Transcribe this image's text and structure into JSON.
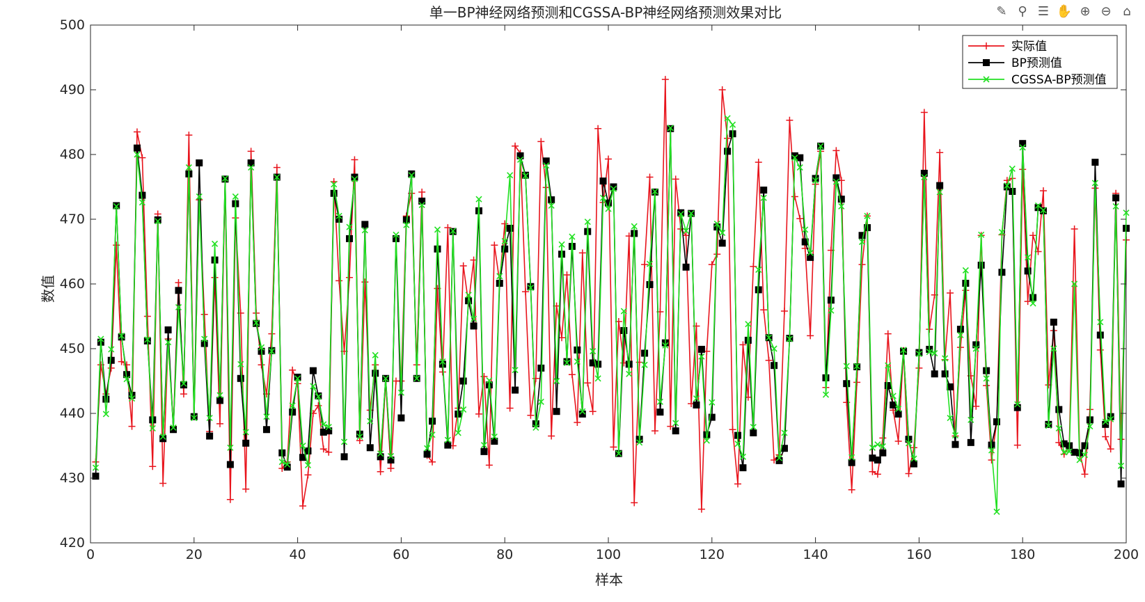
{
  "toolbar": {
    "icons": [
      "brush-icon",
      "data-tips-icon",
      "legend-icon",
      "pan-icon",
      "zoom-in-icon",
      "zoom-out-icon",
      "home-icon"
    ]
  },
  "chart_data": {
    "type": "line",
    "title": "单一BP神经网络预测和CGSSA-BP神经网络预测效果对比",
    "xlabel": "样本",
    "ylabel": "数值",
    "xlim": [
      0,
      200
    ],
    "ylim": [
      420,
      500
    ],
    "xticks": [
      0,
      20,
      40,
      60,
      80,
      100,
      120,
      140,
      160,
      180,
      200
    ],
    "yticks": [
      420,
      430,
      440,
      450,
      460,
      470,
      480,
      490,
      500
    ],
    "grid": false,
    "legend_position": "top-right",
    "x": [
      1,
      2,
      3,
      4,
      5,
      6,
      7,
      8,
      9,
      10,
      11,
      12,
      13,
      14,
      15,
      16,
      17,
      18,
      19,
      20,
      21,
      22,
      23,
      24,
      25,
      26,
      27,
      28,
      29,
      30,
      31,
      32,
      33,
      34,
      35,
      36,
      37,
      38,
      39,
      40,
      41,
      42,
      43,
      44,
      45,
      46,
      47,
      48,
      49,
      50,
      51,
      52,
      53,
      54,
      55,
      56,
      57,
      58,
      59,
      60,
      61,
      62,
      63,
      64,
      65,
      66,
      67,
      68,
      69,
      70,
      71,
      72,
      73,
      74,
      75,
      76,
      77,
      78,
      79,
      80,
      81,
      82,
      83,
      84,
      85,
      86,
      87,
      88,
      89,
      90,
      91,
      92,
      93,
      94,
      95,
      96,
      97,
      98,
      99,
      100,
      101,
      102,
      103,
      104,
      105,
      106,
      107,
      108,
      109,
      110,
      111,
      112,
      113,
      114,
      115,
      116,
      117,
      118,
      119,
      120,
      121,
      122,
      123,
      124,
      125,
      126,
      127,
      128,
      129,
      130,
      131,
      132,
      133,
      134,
      135,
      136,
      137,
      138,
      139,
      140,
      141,
      142,
      143,
      144,
      145,
      146,
      147,
      148,
      149,
      150,
      151,
      152,
      153,
      154,
      155,
      156,
      157,
      158,
      159,
      160,
      161,
      162,
      163,
      164,
      165,
      166,
      167,
      168,
      169,
      170,
      171,
      172,
      173,
      174,
      175,
      176,
      177,
      178,
      179,
      180,
      181,
      182,
      183,
      184,
      185,
      186,
      187,
      188,
      189,
      190,
      191,
      192,
      193,
      194,
      195,
      196,
      197,
      198,
      199,
      200
    ],
    "series": [
      {
        "name": "实际值",
        "color": "#e8141c",
        "marker": "plus",
        "values": [
          432.5,
          447.5,
          443,
          447,
          466,
          448,
          447.5,
          438,
          483.5,
          479.5,
          455,
          431.8,
          470.8,
          429.2,
          451.5,
          438,
          460.2,
          443,
          483,
          439.5,
          473,
          455.3,
          437.2,
          461,
          438.4,
          475.8,
          426.7,
          470.2,
          455.5,
          428.3,
          480.5,
          455.5,
          447.5,
          443,
          452.3,
          478,
          431.5,
          432.5,
          446.7,
          444.6,
          425.7,
          430.5,
          440,
          441.2,
          434.5,
          434,
          475.8,
          460.5,
          449.6,
          461,
          479.2,
          435.8,
          460.3,
          440.5,
          447.5,
          431,
          445,
          431.5,
          445,
          445,
          470.5,
          474,
          447.5,
          474.2,
          433.5,
          432.5,
          459.3,
          446.4,
          468.7,
          435,
          440.8,
          462.8,
          457,
          463.7,
          439.9,
          445.7,
          432,
          466,
          460.4,
          469.3,
          440.8,
          481.3,
          480.2,
          458.8,
          439.7,
          445.4,
          482,
          474.9,
          436.5,
          456.6,
          451.7,
          461.4,
          446,
          438.6,
          464.8,
          444.7,
          440.3,
          484,
          472.6,
          479.3,
          434.8,
          454.2,
          447.8,
          467.4,
          426.2,
          447.9,
          463,
          476.5,
          437.3,
          455.7,
          491.6,
          438,
          476.2,
          468.5,
          467.5,
          441.5,
          453.5,
          425.2,
          449.6,
          463,
          464.6,
          490,
          482.5,
          437.5,
          429.1,
          450.6,
          442.5,
          462.7,
          478.8,
          456,
          448.2,
          432.8,
          433.6,
          455.8,
          485.3,
          473.5,
          470.1,
          465.5,
          452,
          475.4,
          480.5,
          444,
          465.2,
          480.6,
          476,
          441.7,
          428.2,
          444.8,
          463,
          470.5,
          431,
          430.6,
          436.2,
          452.3,
          440.5,
          435.7,
          449.7,
          430.7,
          434.7,
          447,
          486.5,
          453,
          458.3,
          480.3,
          448.3,
          458.6,
          436.5,
          450.2,
          459,
          445.8,
          441.1,
          467.5,
          444.3,
          432.8,
          438.7,
          467.6,
          476,
          476.3,
          435.1,
          477.7,
          457.3,
          467.5,
          465,
          474.4,
          444.4,
          452.8,
          435.5,
          433.7,
          434.8,
          468.5,
          434,
          430.6,
          440.6,
          474.8,
          449.8,
          436.4,
          434.5,
          474,
          436,
          466.8
        ]
      },
      {
        "name": "BP预测值",
        "color": "#000000",
        "marker": "square",
        "values": [
          430.3,
          451,
          442.2,
          448.2,
          472.1,
          451.8,
          446,
          442.8,
          481,
          473.7,
          451.2,
          439,
          469.9,
          436.1,
          452.9,
          437.5,
          459,
          444.4,
          477,
          439.5,
          478.7,
          450.8,
          436.5,
          463.7,
          442,
          476.2,
          432.1,
          472.4,
          445.4,
          435.4,
          478.7,
          453.9,
          449.6,
          437.5,
          449.7,
          476.5,
          433.9,
          431.7,
          440.2,
          445.6,
          433.2,
          434.2,
          446.6,
          442.7,
          437.1,
          437.3,
          474,
          470,
          433.3,
          467,
          476.5,
          436.8,
          469.2,
          434.7,
          446.2,
          433.3,
          445.4,
          432.8,
          467,
          439.3,
          469.9,
          477,
          445.4,
          472.8,
          433.7,
          438.8,
          465.4,
          447.6,
          435.1,
          468.1,
          439.9,
          445,
          457.4,
          453.5,
          471.3,
          434.1,
          444.4,
          435.7,
          460.1,
          465.4,
          468.6,
          443.6,
          479.8,
          476.8,
          459.6,
          438.4,
          447,
          479,
          473,
          440.3,
          464.6,
          448,
          465.8,
          449.8,
          439.9,
          468.1,
          447.8,
          447.6,
          475.9,
          472.5,
          475,
          433.8,
          452.8,
          447.6,
          467.8,
          436,
          449.3,
          459.9,
          474.2,
          440.2,
          450.9,
          484,
          437.3,
          471,
          462.6,
          470.9,
          441.3,
          449.9,
          436.7,
          439.4,
          468.8,
          466.3,
          480.5,
          483.2,
          436.6,
          431.6,
          451.3,
          437,
          459.1,
          474.5,
          451.7,
          447.4,
          432.7,
          434.6,
          451.6,
          479.8,
          479.5,
          466.5,
          464.1,
          476.3,
          481.3,
          445.5,
          457.5,
          476.4,
          473.1,
          444.6,
          432.4,
          447.2,
          467.5,
          468.7,
          433.1,
          432.8,
          433.9,
          444.3,
          441.3,
          439.9,
          449.6,
          436,
          432.2,
          449.4,
          477.1,
          449.9,
          446.1,
          475.2,
          446.1,
          444.1,
          435.2,
          453,
          460.1,
          435.5,
          450.6,
          462.9,
          446.6,
          435.1,
          438.7,
          461.8,
          475,
          474.3,
          440.9,
          481.7,
          462,
          457.9,
          471.8,
          471.3,
          438.3,
          454.1,
          440.6,
          435.3,
          435,
          434,
          433.9,
          435,
          439,
          478.8,
          452.1,
          438.3,
          439.5,
          473.3,
          429.1,
          468.6
        ]
      },
      {
        "name": "CGSSA-BP预测值",
        "color": "#22e022",
        "marker": "x",
        "values": [
          431.6,
          451.5,
          439.9,
          449.9,
          472,
          452,
          445.3,
          442.3,
          480,
          472.6,
          451.4,
          437.7,
          469.7,
          436.4,
          451,
          437.8,
          456.4,
          444.6,
          478,
          439.3,
          473.5,
          451.5,
          439.3,
          466.2,
          442.8,
          476.3,
          434.7,
          473.5,
          447.6,
          437.1,
          478,
          454,
          450.2,
          439.5,
          449.6,
          476.5,
          432.5,
          432.1,
          441.2,
          445.4,
          435,
          432,
          444.2,
          442.6,
          438.3,
          437.9,
          475.4,
          470.5,
          435.6,
          468.8,
          476.2,
          436.4,
          468.3,
          438.8,
          449,
          433.8,
          445.4,
          433.4,
          467.6,
          443.2,
          469.1,
          476.8,
          445.4,
          472.2,
          434.6,
          436.7,
          468.4,
          448,
          435.9,
          468.2,
          437,
          440.6,
          458.3,
          454.6,
          473.1,
          435.1,
          445.1,
          436.4,
          461.2,
          466.6,
          476.8,
          446.7,
          479.2,
          476.7,
          459.4,
          437.8,
          441.8,
          478.3,
          472.1,
          445,
          466.1,
          447.8,
          467.3,
          448,
          440.3,
          469.6,
          449.6,
          445.4,
          473.3,
          471.6,
          474.7,
          433.8,
          455.8,
          446.1,
          468.9,
          435.5,
          447.5,
          463.1,
          474.3,
          441.8,
          450.5,
          484.1,
          438.5,
          470.8,
          468.2,
          470.9,
          442.3,
          448.8,
          435.8,
          441.7,
          469.3,
          467.9,
          485.6,
          484.6,
          435.3,
          433.3,
          453.8,
          437.9,
          462.2,
          473.3,
          451.7,
          450,
          433.1,
          437,
          451.5,
          479.5,
          478,
          468.4,
          464.8,
          476,
          481.3,
          442.9,
          455.9,
          475.8,
          472,
          447.3,
          433.2,
          447.3,
          466.5,
          470.5,
          434.7,
          435.2,
          434.9,
          447.4,
          442.7,
          440.7,
          449.8,
          435.4,
          433,
          449.2,
          476.5,
          449.5,
          449.3,
          474.2,
          448.5,
          439.3,
          436.6,
          452.1,
          462.1,
          439,
          450,
          467.6,
          445.4,
          434.3,
          424.8,
          468,
          475.2,
          477.8,
          441.4,
          481.1,
          464.1,
          457,
          472.1,
          471.4,
          438.1,
          450,
          437.7,
          434,
          434.1,
          460,
          432.8,
          433.6,
          438,
          475.6,
          454.1,
          438.7,
          439.1,
          472,
          431.9,
          471
        ]
      }
    ]
  }
}
